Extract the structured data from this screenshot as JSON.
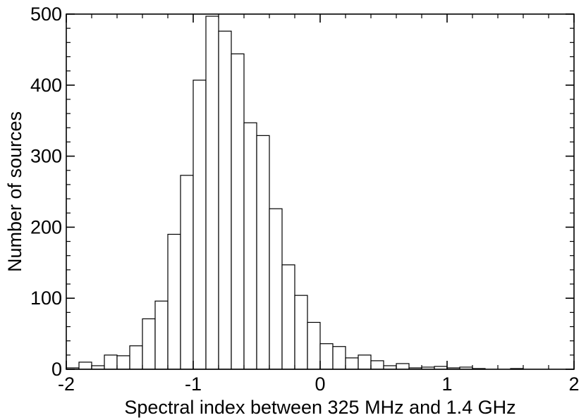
{
  "chart_data": {
    "type": "bar",
    "subtype": "histogram",
    "xlabel": "Spectral index between 325 MHz and 1.4 GHz",
    "ylabel": "Number of sources",
    "xlim": [
      -2,
      2
    ],
    "ylim": [
      0,
      500
    ],
    "grid": false,
    "bin_width": 0.1,
    "x_ticks": [
      -2,
      -1,
      0,
      1,
      2
    ],
    "x_tick_labels": [
      "-2",
      "-1",
      "0",
      "1",
      "2"
    ],
    "y_ticks": [
      0,
      100,
      200,
      300,
      400,
      500
    ],
    "y_tick_labels": [
      "0",
      "100",
      "200",
      "300",
      "400",
      "500"
    ],
    "bin_starts": [
      -2.0,
      -1.9,
      -1.8,
      -1.7,
      -1.6,
      -1.5,
      -1.4,
      -1.3,
      -1.2,
      -1.1,
      -1.0,
      -0.9,
      -0.8,
      -0.7,
      -0.6,
      -0.5,
      -0.4,
      -0.3,
      -0.2,
      -0.1,
      0.0,
      0.1,
      0.2,
      0.3,
      0.4,
      0.5,
      0.6,
      0.7,
      0.8,
      0.9,
      1.0,
      1.1,
      1.2,
      1.3,
      1.4,
      1.5,
      1.6,
      1.7,
      1.8,
      1.9
    ],
    "values": [
      2,
      10,
      5,
      20,
      19,
      33,
      71,
      96,
      190,
      273,
      407,
      497,
      476,
      444,
      347,
      329,
      226,
      147,
      104,
      66,
      36,
      32,
      16,
      20,
      12,
      5,
      8,
      2,
      3,
      4,
      2,
      3,
      1,
      0,
      0,
      1,
      0,
      0,
      0,
      0
    ]
  }
}
